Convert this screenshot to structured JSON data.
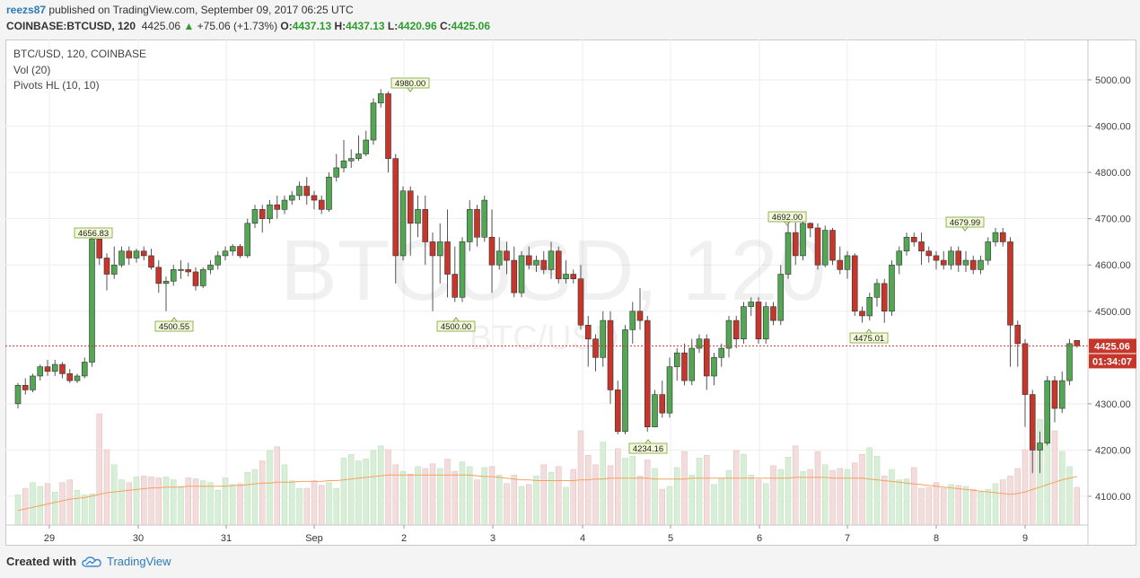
{
  "header": {
    "user": "reezs87",
    "published_text": "published on TradingView.com, September 09, 2017 06:25 UTC",
    "symbol_label": "COINBASE:BTCUSD, 120",
    "last": "4425.06",
    "change_arrow": "▲",
    "change": "+75.06 (+1.73%)",
    "o_label": "O:",
    "o": "4437.13",
    "h_label": "H:",
    "h": "4437.13",
    "l_label": "L:",
    "l": "4420.96",
    "c_label": "C:",
    "c": "4425.06"
  },
  "legend": {
    "line1": "BTC/USD, 120, COINBASE",
    "line2": "Vol (20)",
    "line3": "Pivots HL (10, 10)"
  },
  "watermark": {
    "main": "BTCUSD, 120",
    "sub": "BTC/USD"
  },
  "footer": {
    "created": "Created with",
    "brand": "TradingView"
  },
  "colors": {
    "up": "#53a653",
    "down": "#c6362b",
    "vol_up": "#d7eed7",
    "vol_down": "#f2dcdc",
    "ma": "#f5a25d",
    "price_line": "#c6362b",
    "pivot_bg": "#f2f8d8",
    "pivot_border": "#7aa33a"
  },
  "chart_data": {
    "type": "candlestick",
    "interval": "120",
    "y_axis": {
      "ticks": [
        5000,
        4900,
        4800,
        4700,
        4600,
        4500,
        4300,
        4200,
        4100
      ],
      "tick_labels": [
        "5000.00",
        "4900.00",
        "4800.00",
        "4700.00",
        "4600.00",
        "4500.00",
        "4300.00",
        "4200.00",
        "4100.00"
      ],
      "range": [
        4020,
        5090
      ]
    },
    "x_axis": {
      "tick_labels": [
        "29",
        "30",
        "31",
        "Sep",
        "2",
        "3",
        "4",
        "5",
        "6",
        "7",
        "8",
        "9"
      ]
    },
    "last_price": {
      "value": 4425.06,
      "label": "4425.06",
      "countdown": "01:34:07"
    },
    "pivots": [
      {
        "label": "4656.83",
        "type": "high"
      },
      {
        "label": "4500.55",
        "type": "low"
      },
      {
        "label": "4980.00",
        "type": "high"
      },
      {
        "label": "4500.00",
        "type": "low"
      },
      {
        "label": "4234.16",
        "type": "low"
      },
      {
        "label": "4692.00",
        "type": "high"
      },
      {
        "label": "4475.01",
        "type": "low"
      },
      {
        "label": "4679.99",
        "type": "high"
      }
    ],
    "candles": [
      [
        4300,
        4340,
        4290,
        4345
      ],
      [
        4340,
        4330,
        4320,
        4355
      ],
      [
        4330,
        4360,
        4325,
        4365
      ],
      [
        4360,
        4380,
        4350,
        4385
      ],
      [
        4380,
        4370,
        4360,
        4395
      ],
      [
        4370,
        4385,
        4360,
        4395
      ],
      [
        4385,
        4365,
        4355,
        4390
      ],
      [
        4365,
        4350,
        4345,
        4375
      ],
      [
        4350,
        4360,
        4345,
        4365
      ],
      [
        4360,
        4390,
        4355,
        4400
      ],
      [
        4390,
        4656,
        4380,
        4660
      ],
      [
        4656,
        4615,
        4600,
        4650
      ],
      [
        4615,
        4580,
        4545,
        4625
      ],
      [
        4580,
        4600,
        4570,
        4640
      ],
      [
        4600,
        4630,
        4595,
        4640
      ],
      [
        4630,
        4615,
        4600,
        4640
      ],
      [
        4615,
        4630,
        4605,
        4635
      ],
      [
        4630,
        4620,
        4610,
        4640
      ],
      [
        4620,
        4595,
        4590,
        4635
      ],
      [
        4595,
        4560,
        4540,
        4610
      ],
      [
        4560,
        4565,
        4500,
        4575
      ],
      [
        4565,
        4590,
        4555,
        4600
      ],
      [
        4590,
        4590,
        4570,
        4610
      ],
      [
        4590,
        4585,
        4575,
        4605
      ],
      [
        4585,
        4555,
        4545,
        4595
      ],
      [
        4555,
        4590,
        4550,
        4595
      ],
      [
        4590,
        4600,
        4580,
        4610
      ],
      [
        4600,
        4620,
        4590,
        4630
      ],
      [
        4620,
        4630,
        4610,
        4640
      ],
      [
        4630,
        4640,
        4620,
        4645
      ],
      [
        4640,
        4620,
        4615,
        4645
      ],
      [
        4620,
        4690,
        4615,
        4700
      ],
      [
        4690,
        4720,
        4680,
        4730
      ],
      [
        4720,
        4700,
        4670,
        4730
      ],
      [
        4700,
        4730,
        4690,
        4740
      ],
      [
        4730,
        4720,
        4700,
        4750
      ],
      [
        4720,
        4740,
        4710,
        4750
      ],
      [
        4740,
        4750,
        4730,
        4760
      ],
      [
        4750,
        4770,
        4740,
        4780
      ],
      [
        4770,
        4750,
        4730,
        4790
      ],
      [
        4750,
        4740,
        4720,
        4760
      ],
      [
        4740,
        4720,
        4710,
        4750
      ],
      [
        4720,
        4790,
        4715,
        4800
      ],
      [
        4790,
        4810,
        4780,
        4840
      ],
      [
        4810,
        4825,
        4800,
        4870
      ],
      [
        4825,
        4830,
        4810,
        4850
      ],
      [
        4830,
        4840,
        4825,
        4880
      ],
      [
        4840,
        4870,
        4835,
        4890
      ],
      [
        4870,
        4950,
        4860,
        4960
      ],
      [
        4950,
        4970,
        4940,
        4980
      ],
      [
        4970,
        4830,
        4800,
        4975
      ],
      [
        4830,
        4620,
        4560,
        4840
      ],
      [
        4620,
        4760,
        4610,
        4770
      ],
      [
        4760,
        4690,
        4620,
        4770
      ],
      [
        4690,
        4720,
        4660,
        4750
      ],
      [
        4720,
        4650,
        4600,
        4750
      ],
      [
        4650,
        4620,
        4500,
        4670
      ],
      [
        4620,
        4650,
        4560,
        4690
      ],
      [
        4650,
        4580,
        4530,
        4720
      ],
      [
        4580,
        4530,
        4520,
        4640
      ],
      [
        4530,
        4650,
        4520,
        4660
      ],
      [
        4650,
        4720,
        4630,
        4740
      ],
      [
        4720,
        4660,
        4640,
        4730
      ],
      [
        4660,
        4740,
        4650,
        4750
      ],
      [
        4660,
        4600,
        4540,
        4720
      ],
      [
        4600,
        4630,
        4590,
        4660
      ],
      [
        4630,
        4610,
        4580,
        4650
      ],
      [
        4610,
        4540,
        4530,
        4640
      ],
      [
        4540,
        4620,
        4530,
        4630
      ],
      [
        4620,
        4600,
        4590,
        4640
      ],
      [
        4600,
        4610,
        4585,
        4620
      ],
      [
        4610,
        4590,
        4580,
        4630
      ],
      [
        4590,
        4630,
        4570,
        4650
      ],
      [
        4630,
        4570,
        4560,
        4640
      ],
      [
        4570,
        4580,
        4560,
        4610
      ],
      [
        4580,
        4570,
        4560,
        4590
      ],
      [
        4570,
        4470,
        4460,
        4600
      ],
      [
        4470,
        4440,
        4380,
        4490
      ],
      [
        4440,
        4400,
        4370,
        4450
      ],
      [
        4400,
        4480,
        4380,
        4500
      ],
      [
        4480,
        4330,
        4300,
        4500
      ],
      [
        4330,
        4240,
        4234,
        4350
      ],
      [
        4240,
        4460,
        4234,
        4470
      ],
      [
        4460,
        4500,
        4430,
        4520
      ],
      [
        4500,
        4480,
        4460,
        4550
      ],
      [
        4480,
        4250,
        4240,
        4490
      ],
      [
        4250,
        4320,
        4250,
        4330
      ],
      [
        4320,
        4280,
        4270,
        4350
      ],
      [
        4280,
        4380,
        4270,
        4400
      ],
      [
        4380,
        4410,
        4350,
        4420
      ],
      [
        4410,
        4350,
        4340,
        4430
      ],
      [
        4350,
        4420,
        4340,
        4440
      ],
      [
        4420,
        4440,
        4410,
        4450
      ],
      [
        4440,
        4360,
        4330,
        4450
      ],
      [
        4360,
        4400,
        4340,
        4410
      ],
      [
        4400,
        4420,
        4380,
        4430
      ],
      [
        4420,
        4480,
        4400,
        4490
      ],
      [
        4480,
        4440,
        4420,
        4490
      ],
      [
        4440,
        4510,
        4430,
        4520
      ],
      [
        4510,
        4520,
        4490,
        4530
      ],
      [
        4520,
        4440,
        4430,
        4530
      ],
      [
        4440,
        4510,
        4430,
        4520
      ],
      [
        4510,
        4480,
        4470,
        4520
      ],
      [
        4480,
        4580,
        4470,
        4600
      ],
      [
        4580,
        4670,
        4570,
        4692
      ],
      [
        4670,
        4620,
        4600,
        4692
      ],
      [
        4620,
        4690,
        4610,
        4695
      ],
      [
        4690,
        4680,
        4660,
        4692
      ],
      [
        4680,
        4600,
        4590,
        4690
      ],
      [
        4600,
        4675,
        4595,
        4685
      ],
      [
        4675,
        4610,
        4600,
        4680
      ],
      [
        4610,
        4590,
        4580,
        4640
      ],
      [
        4590,
        4620,
        4570,
        4630
      ],
      [
        4620,
        4500,
        4490,
        4625
      ],
      [
        4500,
        4490,
        4475,
        4510
      ],
      [
        4490,
        4530,
        4480,
        4540
      ],
      [
        4530,
        4560,
        4510,
        4570
      ],
      [
        4560,
        4500,
        4475,
        4570
      ],
      [
        4500,
        4600,
        4490,
        4610
      ],
      [
        4600,
        4630,
        4580,
        4640
      ],
      [
        4630,
        4660,
        4620,
        4670
      ],
      [
        4660,
        4650,
        4640,
        4670
      ],
      [
        4650,
        4630,
        4600,
        4670
      ],
      [
        4630,
        4620,
        4605,
        4640
      ],
      [
        4620,
        4610,
        4590,
        4630
      ],
      [
        4610,
        4600,
        4590,
        4630
      ],
      [
        4600,
        4630,
        4590,
        4640
      ],
      [
        4630,
        4600,
        4585,
        4640
      ],
      [
        4600,
        4610,
        4585,
        4630
      ],
      [
        4610,
        4590,
        4580,
        4620
      ],
      [
        4590,
        4610,
        4580,
        4620
      ],
      [
        4610,
        4650,
        4600,
        4660
      ],
      [
        4650,
        4670,
        4640,
        4680
      ],
      [
        4670,
        4650,
        4640,
        4680
      ],
      [
        4650,
        4470,
        4380,
        4660
      ],
      [
        4470,
        4430,
        4380,
        4480
      ],
      [
        4430,
        4320,
        4250,
        4440
      ],
      [
        4320,
        4200,
        4150,
        4330
      ],
      [
        4200,
        4215,
        4150,
        4240
      ],
      [
        4215,
        4350,
        4210,
        4360
      ],
      [
        4350,
        4290,
        4260,
        4360
      ],
      [
        4290,
        4350,
        4280,
        4370
      ],
      [
        4350,
        4430,
        4340,
        4440
      ],
      [
        4437,
        4425,
        4421,
        4437
      ]
    ],
    "volume": [
      {
        "values": [
          32,
          39,
          45,
          41,
          44,
          35,
          45,
          48,
          37,
          32,
          33,
          118,
          80,
          64,
          48,
          45,
          51,
          52,
          51,
          50,
          51,
          48,
          41,
          50,
          49,
          47,
          45,
          37,
          50,
          43,
          44,
          56,
          59,
          68,
          79,
          83,
          64,
          47,
          39,
          39,
          47,
          42,
          45,
          39,
          71,
          75,
          68,
          70,
          79,
          84,
          80,
          64,
          57,
          54,
          62,
          60,
          65,
          60,
          70,
          57,
          67,
          62,
          48,
          61,
          62,
          53,
          44,
          53,
          41,
          43,
          52,
          64,
          56,
          62,
          40,
          59,
          100,
          74,
          64,
          88,
          63,
          81,
          71,
          73,
          52,
          69,
          60,
          38,
          41,
          61,
          78,
          53,
          71,
          74,
          43,
          49,
          58,
          79,
          75,
          53,
          48,
          44,
          63,
          59,
          72,
          84,
          57,
          59,
          78,
          64,
          58,
          60,
          59,
          66,
          75,
          82,
          73,
          52,
          59,
          48,
          49,
          61,
          39,
          40,
          45,
          39,
          43,
          42,
          41,
          38,
          35,
          38,
          44,
          48,
          52,
          60,
          80,
          100,
          112,
          115,
          100,
          78,
          62,
          40
        ]
      },
      {
        "ma": [
          18,
          20,
          22,
          24,
          26,
          28,
          30,
          32,
          33,
          34,
          36,
          38,
          40,
          41,
          42,
          43,
          44,
          45,
          46,
          46,
          47,
          47,
          47,
          48,
          48,
          48,
          48,
          48,
          48,
          49,
          49,
          50,
          51,
          52,
          52,
          53,
          53,
          53,
          54,
          54,
          54,
          54,
          55,
          55,
          56,
          57,
          58,
          59,
          60,
          61,
          62,
          62,
          62,
          62,
          62,
          62,
          62,
          62,
          62,
          62,
          62,
          62,
          61,
          60,
          60,
          59,
          58,
          57,
          56,
          56,
          55,
          55,
          55,
          55,
          55,
          55,
          56,
          56,
          57,
          57,
          58,
          58,
          58,
          58,
          58,
          58,
          57,
          57,
          57,
          57,
          57,
          58,
          58,
          58,
          58,
          58,
          58,
          58,
          58,
          58,
          58,
          58,
          58,
          58,
          58,
          59,
          59,
          59,
          59,
          59,
          58,
          58,
          58,
          58,
          58,
          57,
          56,
          55,
          54,
          53,
          52,
          51,
          50,
          49,
          48,
          47,
          46,
          45,
          44,
          43,
          42,
          41,
          40,
          39,
          38,
          39,
          41,
          44,
          47,
          50,
          53,
          56,
          58,
          60
        ]
      }
    ]
  }
}
